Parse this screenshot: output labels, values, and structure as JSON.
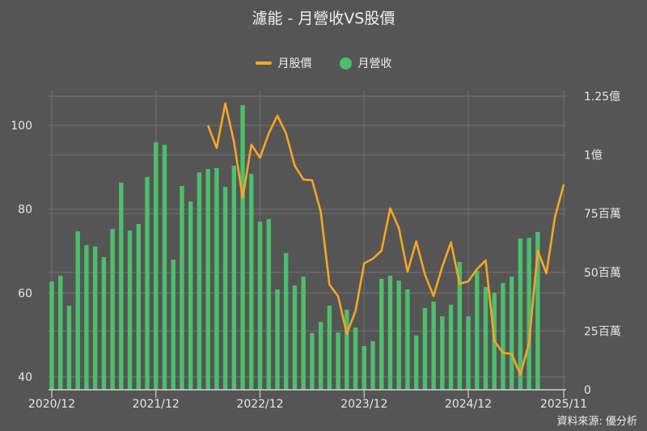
{
  "title": "濾能 - 月營收VS股價",
  "legend": [
    {
      "label": "月股價",
      "type": "line",
      "color": "#f5a623"
    },
    {
      "label": "月營收",
      "type": "dot",
      "color": "#4cbf6b"
    }
  ],
  "source": "資料來源: 優分析",
  "colors": {
    "background": "#555555",
    "grid": "#6e6e6e",
    "bar": "#4cbf6b",
    "line": "#f5a623",
    "axis": "#d0d0d0"
  },
  "chart_data": {
    "type": "bar+line",
    "title": "濾能 - 月營收VS股價",
    "x_tick_labels": [
      "2020/12",
      "2021/12",
      "2022/12",
      "2023/12",
      "2024/12",
      "2025/11"
    ],
    "x_tick_index": [
      0,
      12,
      24,
      36,
      48,
      59
    ],
    "left_axis": {
      "label": "月股價",
      "ticks": [
        40,
        60,
        80,
        100
      ],
      "range": [
        37,
        109
      ]
    },
    "right_axis": {
      "label": "月營收",
      "tick_labels": [
        "0",
        "25百萬",
        "50百萬",
        "75百萬",
        "1億",
        "1.25億"
      ],
      "ticks": [
        0,
        25,
        50,
        75,
        100,
        125
      ],
      "unit": "百萬",
      "range": [
        0,
        125
      ]
    },
    "series": [
      {
        "name": "月營收",
        "type": "bar",
        "axis": "right",
        "unit": "百萬",
        "start_index": 0,
        "values": [
          46.1,
          48.6,
          35.8,
          67.5,
          61.6,
          61.0,
          56.5,
          68.5,
          88.2,
          67.8,
          70.6,
          90.6,
          105.4,
          104.3,
          55.4,
          86.8,
          80.2,
          92.6,
          94.0,
          94.4,
          86.4,
          95.4,
          121.2,
          91.9,
          71.6,
          72.7,
          42.7,
          58.2,
          44.4,
          48.2,
          24.1,
          28.9,
          35.8,
          24.4,
          34.1,
          26.5,
          18.6,
          20.7,
          47.2,
          48.6,
          46.5,
          42.7,
          23.1,
          34.8,
          37.5,
          31.3,
          36.2,
          54.4,
          31.3,
          50.6,
          43.7,
          41.3,
          45.5,
          48.2,
          64.4,
          64.7,
          67.2
        ]
      },
      {
        "name": "月股價",
        "type": "line",
        "axis": "left",
        "start_index": 18,
        "values": [
          100.0,
          94.6,
          105.2,
          96.1,
          82.7,
          95.4,
          92.3,
          98.1,
          102.3,
          98.1,
          90.4,
          87.1,
          86.9,
          79.4,
          62.0,
          59.2,
          50.3,
          55.7,
          67.1,
          68.2,
          70.1,
          80.2,
          75.5,
          65.1,
          72.3,
          64.4,
          59.3,
          66.3,
          72.1,
          62.2,
          62.8,
          65.7,
          67.8,
          48.6,
          45.7,
          45.5,
          40.5,
          48.0,
          70.1,
          64.7,
          78.2,
          85.9
        ]
      }
    ],
    "grid": true,
    "legend_position": "top"
  }
}
